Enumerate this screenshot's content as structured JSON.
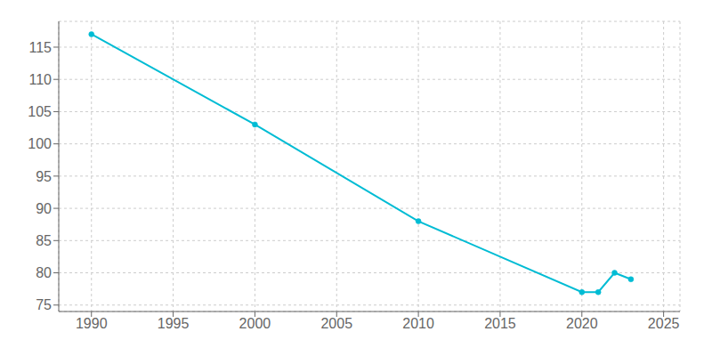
{
  "chart_data": {
    "type": "line",
    "x": [
      1990,
      2000,
      2010,
      2020,
      2021,
      2022,
      2023
    ],
    "values": [
      117,
      103,
      88,
      77,
      77,
      80,
      79
    ],
    "color": "#00bcd4",
    "marker": "circle",
    "xlim": [
      1988,
      2026
    ],
    "ylim": [
      74,
      119
    ],
    "xticks": [
      1990,
      1995,
      2000,
      2005,
      2010,
      2015,
      2020,
      2025
    ],
    "yticks": [
      75,
      80,
      85,
      90,
      95,
      100,
      105,
      110,
      115
    ],
    "grid": true
  }
}
